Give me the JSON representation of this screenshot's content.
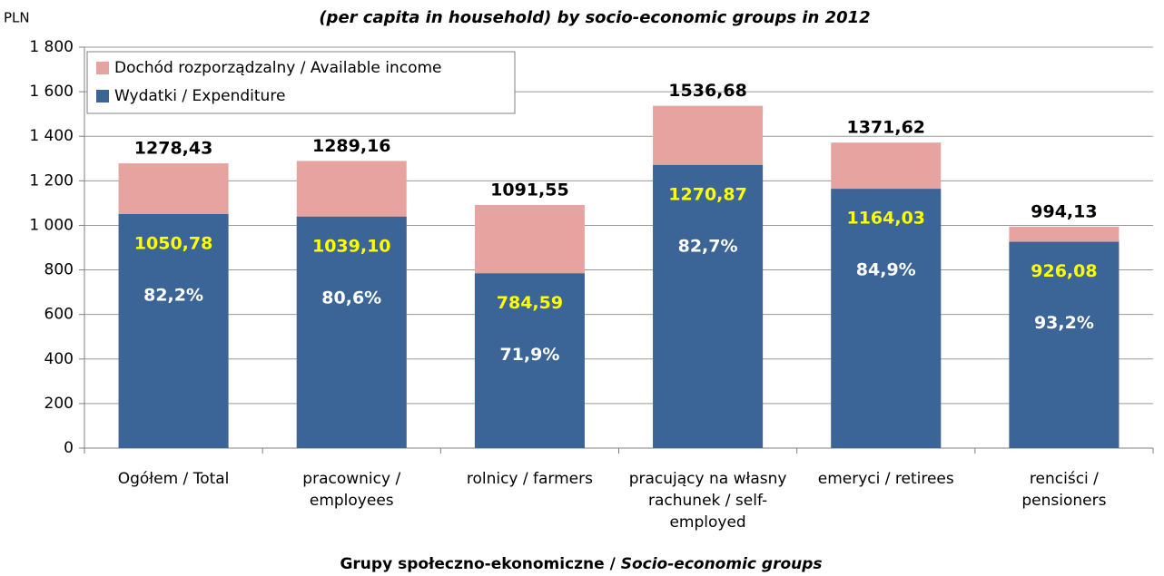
{
  "chart_data": {
    "type": "bar",
    "title": "(per capita in household) by socio-economic groups in 2012",
    "ylabel": "PLN",
    "xlabel": [
      "Grupy społeczno-ekonomiczne /",
      "Socio-economic groups"
    ],
    "categories": [
      [
        "Ogółem / Total"
      ],
      [
        "pracownicy /",
        "employees"
      ],
      [
        "rolnicy / farmers"
      ],
      [
        "pracujący na własny",
        "rachunek / self-",
        "employed"
      ],
      [
        "emeryci / retirees"
      ],
      [
        "renciści /",
        "pensioners"
      ]
    ],
    "series": [
      {
        "name": "Dochód rozporządzalny / Available income",
        "color": "#e6a3a0",
        "values": [
          1278.43,
          1289.16,
          1091.55,
          1536.68,
          1371.62,
          994.13
        ],
        "value_labels": [
          "1278,43",
          "1289,16",
          "1091,55",
          "1536,68",
          "1371,62",
          "994,13"
        ]
      },
      {
        "name": "Wydatki / Expenditure",
        "color": "#3b6497",
        "values": [
          1050.78,
          1039.1,
          784.59,
          1270.87,
          1164.03,
          926.08
        ],
        "value_labels": [
          "1050,78",
          "1039,10",
          "784,59",
          "1270,87",
          "1164,03",
          "926,08"
        ],
        "share_labels": [
          "82,2%",
          "80,6%",
          "71,9%",
          "82,7%",
          "84,9%",
          "93,2%"
        ]
      }
    ],
    "ylim": [
      0,
      1800
    ],
    "yticks": [
      0,
      200,
      400,
      600,
      800,
      {
        "value": 1000,
        "label": "1 000"
      },
      {
        "value": 1200,
        "label": "1 200"
      },
      {
        "value": 1400,
        "label": "1 400"
      },
      {
        "value": 1600,
        "label": "1 600"
      },
      {
        "value": 1800,
        "label": "1 800"
      }
    ],
    "grid": true,
    "legend": "upper left"
  }
}
